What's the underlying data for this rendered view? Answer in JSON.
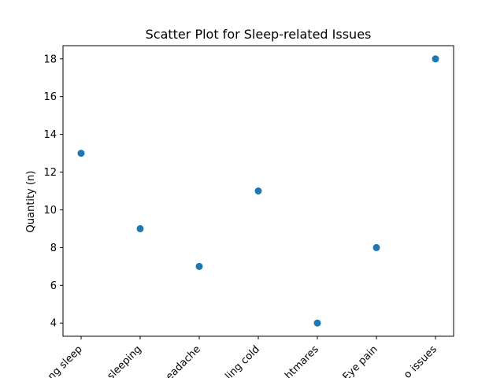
{
  "chart_data": {
    "type": "scatter",
    "title": "Scatter Plot for Sleep-related Issues",
    "xlabel": "",
    "ylabel": "Quantity (n)",
    "categories": [
      "ng sleep",
      "sleeping",
      "eadache",
      "ling cold",
      "htmares",
      "Eye pain",
      "o issues"
    ],
    "values": [
      13,
      9,
      7,
      11,
      4,
      8,
      18
    ],
    "yticks": [
      4,
      6,
      8,
      10,
      12,
      14,
      16,
      18
    ],
    "ylim": [
      3.3,
      18.7
    ],
    "grid": false,
    "marker_color": "#1f77b4"
  }
}
